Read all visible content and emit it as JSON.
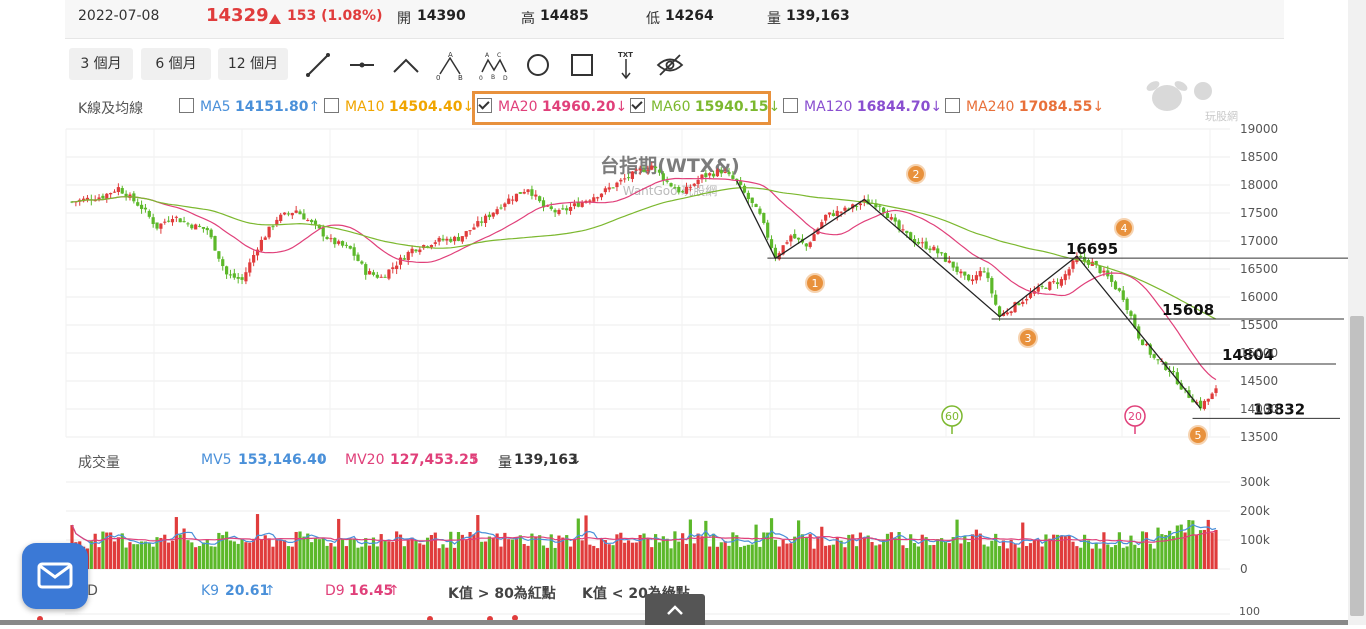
{
  "quote": {
    "date": "2022-07-08",
    "price": "14329",
    "change_icon": "triangle-up-icon",
    "change": "153 (1.08%)",
    "open_label": "開",
    "open": "14390",
    "high_label": "高",
    "high": "14485",
    "low_label": "低",
    "low": "14264",
    "volume_label": "量",
    "volume": "139,163",
    "up_color": "#e03c3c"
  },
  "toolbar": {
    "ranges": [
      "3 個月",
      "6 個月",
      "12 個月"
    ],
    "tools": [
      "line-tool-icon",
      "horizontal-line-icon",
      "angle-line-icon",
      "abc-pattern-icon",
      "abcd-pattern-icon",
      "circle-icon",
      "rectangle-icon",
      "text-arrow-icon",
      "hide-eye-icon"
    ],
    "text_tool_label": "TXT",
    "abc_labels": [
      "A",
      "0",
      "B"
    ],
    "abcd_labels": [
      "A",
      "C",
      "0",
      "B",
      "D"
    ]
  },
  "ma_legend": {
    "title": "K線及均線",
    "items": [
      {
        "label": "MA5",
        "value": "14151.80",
        "arrow": "↑",
        "checked": false,
        "color": "#4a90d9"
      },
      {
        "label": "MA10",
        "value": "14504.40",
        "arrow": "↓",
        "checked": false,
        "color": "#f0a500"
      },
      {
        "label": "MA20",
        "value": "14960.20",
        "arrow": "↓",
        "checked": true,
        "color": "#e0407a"
      },
      {
        "label": "MA60",
        "value": "15940.15",
        "arrow": "↓",
        "checked": true,
        "color": "#7cb82f"
      },
      {
        "label": "MA120",
        "value": "16844.70",
        "arrow": "↓",
        "checked": false,
        "color": "#8a4fd0"
      },
      {
        "label": "MA240",
        "value": "17084.55",
        "arrow": "↓",
        "checked": false,
        "color": "#e8703a"
      }
    ]
  },
  "watermark": {
    "title": "台指期(WTX&)",
    "sub": "WantGoo 玩股網",
    "logo_text": "玩股網"
  },
  "chart_data": {
    "type": "candlestick",
    "y_ticks": [
      "19000",
      "18500",
      "18000",
      "17500",
      "17000",
      "16500",
      "16000",
      "15500",
      "15000",
      "14500",
      "14000",
      "13500"
    ],
    "ylim": [
      13500,
      19000
    ],
    "levels": [
      {
        "label": "16695",
        "value": 16695
      },
      {
        "label": "15608",
        "value": 15608
      },
      {
        "label": "14804",
        "value": 14804
      },
      {
        "label": "13832",
        "value": 13832
      }
    ],
    "wave_labels": [
      "1",
      "2",
      "3",
      "4",
      "5"
    ],
    "markers": [
      "60",
      "20"
    ],
    "volume": {
      "title": "成交量",
      "mv5_label": "MV5",
      "mv5": "153,146.40",
      "mv5_arrow": "↓",
      "mv20_label": "MV20",
      "mv20": "127,453.25",
      "mv20_arrow": "↑",
      "vol_label": "量",
      "vol": "139,163",
      "vol_arrow": "↓",
      "y_ticks": [
        "300k",
        "200k",
        "100k",
        "0"
      ]
    },
    "kd": {
      "title": "KD",
      "k_label": "K9",
      "k": "20.61",
      "k_arrow": "↑",
      "d_label": "D9",
      "d": "16.45",
      "d_arrow": "↑",
      "note1": "K值 > 80為紅點",
      "note2": "K值 < 20為綠點",
      "y_tick": "100"
    }
  }
}
